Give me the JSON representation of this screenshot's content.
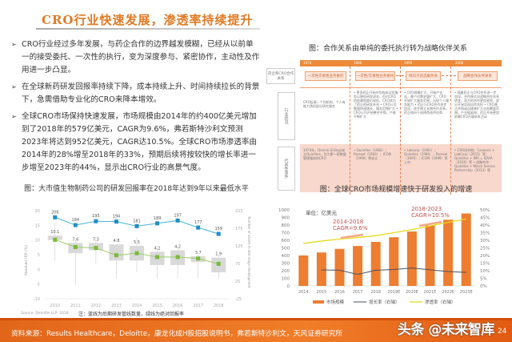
{
  "page": {
    "title": "CRO行业快速发展，渗透率持续提升",
    "page_number": "24"
  },
  "bullets": [
    {
      "text": "CRO行业经过多年发展，与药企合作的边界越发模糊，已经从以前单一的接受委托、一次性的执行，变为深度参与、紧密协作，主动性及作用进一步凸显。"
    },
    {
      "text": "在全球新药研发回报率持续下降，成本持续上升、时间持续拉长的背景下，急需借助专业化的CRO来降本增效。"
    },
    {
      "text": "全球CRO市场保持快速发展，市场规模由2014年的约400亿美元增加到了2018年的579亿美元，CAGR为9.6%，弗若斯特沙利文预测2023年将达到952亿美元，CAGR达10.5%。全球CRO市场渗透率由2014年的28%增至2018年的33%，预期后续将按较快的增长率进一步增至2023年的44%，显示出CRO行业的高景气度。"
    }
  ],
  "diagram": {
    "caption": "图：合作关系由单纯的委托执行转为战略伙伴关系",
    "timeline_years": [
      "1970",
      "1980",
      "1990",
      "2000"
    ],
    "row_labels": [
      "药企和CRO合作关系",
      "行业状况",
      "代表性事件"
    ],
    "stages": [
      "一次性交易性业务委托",
      "一次性/交易性业务委托",
      "倾向于首选服务商",
      "战略合作伙伴关系"
    ],
    "industry_status": [
      "CRO起源，个别机构、个人有能力承担部分研究服务",
      "• 更多药企开始外包临床试验服务以降低研发成本，但对CRO的依赖程度仍较低。CRO成为了药企的研发补充 • CRO公司数量快速增长，服务范围扩大 • CRO公司开始整合并购，产能不断扩大",
      "• CRO规模扩大，开始产业化，客户对需求量扩大，CRO开始扩大服务范围，出现个人服务能力 • 药企与CRO合作逐步加深，逐步建立长期合作关系，药企倾向于选择首选供应商",
      "• 随着药企与CRO合作进一步加深，合作模式向战略合作关系转变，双方的合作更加紧密，部分开始实现风险共担 • CRO通过并购或自建来扩大业务覆盖范围，产业链延伸，药企开始更加依赖CRO开展研发活动"
    ],
    "events": [
      "1974年，Dennis Gillings成立Quintiles，作为第一家数据管理服务的CRO",
      "• Quintiles（1982）；Parexel（1983）；ICON（1990）等成立",
      "• Labcorp（1991）；Quintiles（1994）；Parexel（1995）；ICON（1998）等上市",
      "• CRO间并购：Covance + LabCorp（2015）等；Quintiles + IMS = IQVIA（2016）等 • 战略合作：Quintiles + Merck Serono Partnership（2013）等"
    ]
  },
  "left_chart": {
    "caption": "图：大市值生物制药公司的研发回报率在2018年达到9年以来最低水平",
    "note": "注：蓝线为后期研发管线数量，绿线为绝对回报率",
    "source": "Source: Deloitte LLP, 2018",
    "ylabel_left": "Absolute IRR (%)",
    "ylabel_right": "Number of assets in late-stage development"
  },
  "right_chart": {
    "caption": "图：全球CRO市场规模增速快于研发投入的增速",
    "unit": "单位：亿美元",
    "cagr1": {
      "period": "2014-2018",
      "value": "CAGR=9.6%"
    },
    "cagr2": {
      "period": "2018-2023",
      "value": "CAGR=10.5%"
    },
    "legend": [
      "市场规模",
      "增长率（右轴）",
      "渗透率（右轴）"
    ]
  },
  "footer": {
    "source": "资料来源：Results Healthcare，Deloitte，康龙化成H股招股说明书，弗若斯特沙利文，天风证券研究所",
    "watermark": "头条 @未来智库"
  },
  "chart_data": [
    {
      "type": "line",
      "title": "大市值生物制药公司的研发回报率在2018年达到9年以来最低水平",
      "categories": [
        "2010",
        "2011",
        "2012",
        "2013",
        "2014",
        "2015",
        "2016",
        "2017",
        "2018"
      ],
      "series": [
        {
          "name": "后期研发管线数量（右轴）",
          "color": "#1f8fc8",
          "values": [
            206,
            184,
            195,
            194,
            181,
            189,
            197,
            177,
            159
          ]
        },
        {
          "name": "绝对回报率 (%)",
          "color": "#7ab93b",
          "values": [
            10.1,
            7.6,
            7.3,
            4.8,
            5.5,
            4.2,
            4.2,
            3.7,
            1.9
          ]
        }
      ],
      "boxes": {
        "note": "grey boxplots showing IRR distribution per year",
        "approx_ranges": [
          [
            3,
            16
          ],
          [
            -5.5,
            10
          ],
          [
            2,
            11
          ],
          [
            -3,
            8
          ],
          [
            -1,
            11
          ],
          [
            -3,
            8
          ],
          [
            -3,
            8
          ],
          [
            -3,
            5
          ],
          [
            -3,
            5
          ]
        ],
        "approx_box": [
          [
            10,
            11.5
          ],
          [
            5.5,
            9
          ],
          [
            6.5,
            9
          ],
          [
            3,
            8.5
          ],
          [
            3,
            8
          ],
          [
            1.5,
            6
          ],
          [
            1.5,
            6.5
          ],
          [
            2.5,
            4.5
          ],
          [
            -1,
            4
          ]
        ]
      },
      "ylim_left": [
        -10,
        20
      ],
      "yticks_left": [
        -10,
        -5,
        0,
        5,
        10,
        15,
        20
      ],
      "ylim_right": [
        -25,
        225
      ],
      "yticks_right": [
        -25,
        25,
        75,
        125,
        175,
        225
      ],
      "xlabel": "",
      "ylabel": "Absolute IRR (%)",
      "ylabel_right": "Number of assets in late-stage development",
      "grid": false
    },
    {
      "type": "bar",
      "title": "全球CRO市场规模增速快于研发投入的增速",
      "categories": [
        "2014",
        "2015",
        "2016",
        "2017",
        "2018",
        "2019E",
        "2020E",
        "2021E",
        "2022E",
        "2023E"
      ],
      "series": [
        {
          "name": "市场规模",
          "type": "bar",
          "color": "#ed7d31",
          "axis": "left",
          "values": [
            400,
            440,
            487,
            525,
            579,
            640,
            715,
            795,
            870,
            952
          ]
        },
        {
          "name": "增长率（右轴）",
          "type": "line",
          "color": "#4a5160",
          "axis": "right",
          "values": [
            null,
            10.5,
            10.3,
            7.6,
            10.3,
            10.8,
            11.8,
            10.6,
            9.5,
            8.9
          ]
        },
        {
          "name": "渗透率（右轴）",
          "type": "line",
          "color": "#f2e21a",
          "axis": "right",
          "values": [
            28,
            29.5,
            30.8,
            31.8,
            33,
            35,
            37,
            39.5,
            41.8,
            44
          ]
        }
      ],
      "annotations": [
        "2014-2018 CAGR=9.6%",
        "2018-2023 CAGR=10.5%",
        "单位：亿美元"
      ],
      "ylim_left": [
        0,
        1000
      ],
      "yticks_left": [
        0,
        100,
        200,
        300,
        400,
        500,
        600,
        700,
        800,
        900,
        1000
      ],
      "ylim_right": [
        0,
        50
      ],
      "yticks_right": [
        "0%",
        "5%",
        "10%",
        "15%",
        "20%",
        "25%",
        "30%",
        "35%",
        "40%",
        "45%",
        "50%"
      ],
      "legend_position": "bottom",
      "grid": false
    }
  ]
}
